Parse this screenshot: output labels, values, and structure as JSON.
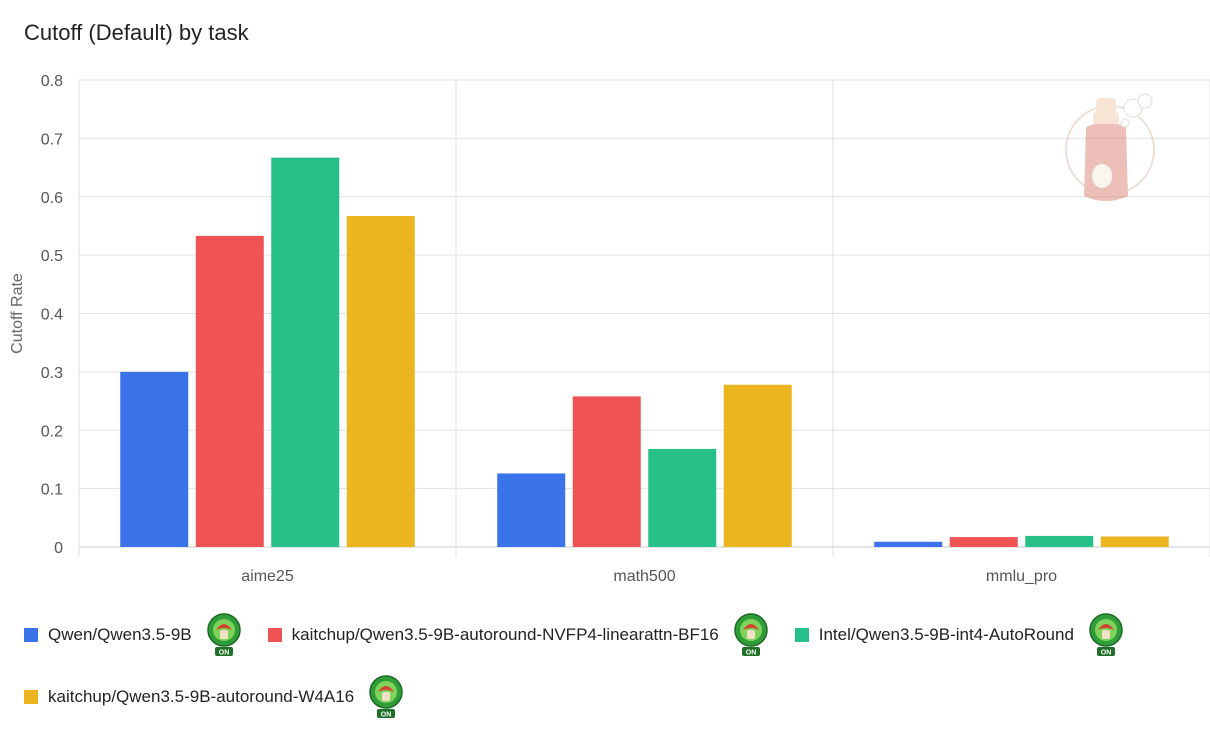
{
  "chart_data": {
    "type": "bar",
    "title": "Cutoff (Default) by task",
    "xlabel": "",
    "ylabel": "Cutoff Rate",
    "ylim": [
      0,
      0.8
    ],
    "yticks": [
      "0",
      "0.1",
      "0.2",
      "0.3",
      "0.4",
      "0.5",
      "0.6",
      "0.7",
      "0.8"
    ],
    "grid": true,
    "legend_position": "bottom",
    "categories": [
      "aime25",
      "math500",
      "mmlu_pro"
    ],
    "series": [
      {
        "name": "Qwen/Qwen3.5-9B",
        "color": "#3b73e9",
        "values": [
          0.3,
          0.126,
          0.009
        ],
        "badge": "ON"
      },
      {
        "name": "kaitchup/Qwen3.5-9B-autoround-NVFP4-linearattn-BF16",
        "color": "#ef5353",
        "values": [
          0.533,
          0.258,
          0.017
        ],
        "badge": "ON"
      },
      {
        "name": "Intel/Qwen3.5-9B-int4-AutoRound",
        "color": "#27c088",
        "values": [
          0.667,
          0.168,
          0.019
        ],
        "badge": "ON"
      },
      {
        "name": "kaitchup/Qwen3.5-9B-autoround-W4A16",
        "color": "#eab51f",
        "values": [
          0.567,
          0.278,
          0.018
        ],
        "badge": "ON"
      }
    ]
  }
}
